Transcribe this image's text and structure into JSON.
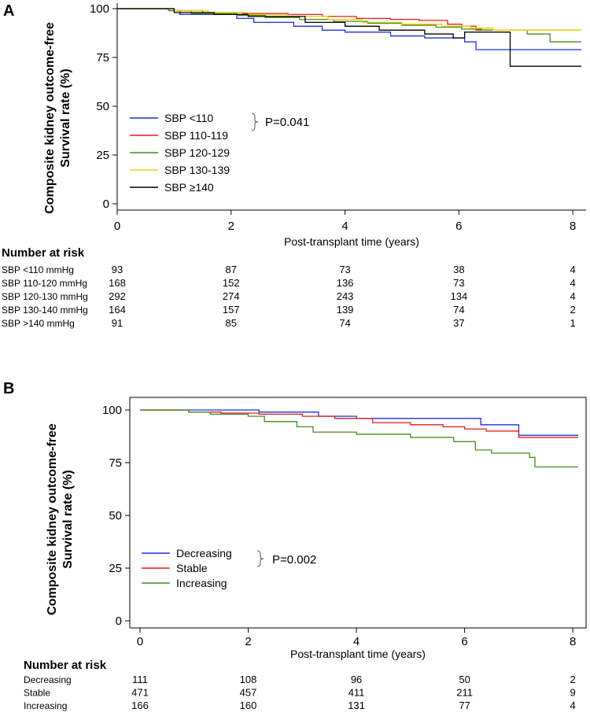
{
  "chart_data": [
    {
      "panel": "A",
      "type": "line",
      "ylabel": [
        "Composite kidney outcome-free",
        "Survival rate (%)"
      ],
      "xlabel": "Post-transplant time (years)",
      "xlim": [
        0,
        8.15
      ],
      "ylim": [
        0,
        100
      ],
      "xticks": [
        0,
        2,
        4,
        6,
        8
      ],
      "yticks": [
        0,
        25,
        50,
        75,
        100
      ],
      "xtick_labels": [
        "0",
        "2",
        "4",
        "6",
        "8"
      ],
      "ytick_labels": [
        "0",
        "25",
        "50",
        "75",
        "100"
      ],
      "legend": [
        "SBP <110",
        "SBP 110-119",
        "SBP 120-129",
        "SBP 130-139",
        "SBP ≥140"
      ],
      "p_value": "P=0.041",
      "series": [
        {
          "name": "SBP <110",
          "color": "#1f2fe0",
          "x": [
            0,
            0.9,
            1.1,
            2.1,
            2.4,
            3.1,
            3.6,
            4.0,
            4.8,
            5.4,
            6.1,
            6.3,
            8.15
          ],
          "y": [
            100,
            99,
            97,
            95,
            93,
            91,
            89,
            88,
            86,
            85,
            83,
            79,
            79
          ]
        },
        {
          "name": "SBP 110-119",
          "color": "#e01b1b",
          "x": [
            0,
            1.0,
            1.5,
            2.2,
            3.0,
            3.6,
            4.2,
            4.8,
            5.3,
            5.8,
            6.05,
            6.3,
            8.15
          ],
          "y": [
            100,
            99,
            98,
            97.5,
            97,
            96,
            95,
            94.5,
            94,
            92,
            91,
            89,
            89
          ]
        },
        {
          "name": "SBP 120-129",
          "color": "#4a8a1e",
          "x": [
            0,
            0.9,
            1.3,
            2.1,
            2.6,
            3.2,
            3.8,
            4.4,
            5.0,
            5.6,
            6.05,
            6.4,
            7.2,
            7.6,
            8.15
          ],
          "y": [
            100,
            99,
            97.5,
            96.5,
            95.5,
            94.5,
            93.5,
            92.5,
            91.5,
            90.5,
            89.5,
            89,
            87,
            83,
            83
          ]
        },
        {
          "name": "SBP 130-139",
          "color": "#f0d000",
          "x": [
            0,
            1.0,
            1.6,
            2.3,
            3.0,
            3.7,
            4.3,
            5.0,
            5.7,
            6.2,
            6.6,
            8.15
          ],
          "y": [
            100,
            99,
            98,
            97,
            96,
            94.5,
            93,
            92,
            91,
            90,
            89,
            89
          ]
        },
        {
          "name": "SBP ≥140",
          "color": "#000000",
          "x": [
            0,
            1.0,
            1.7,
            2.3,
            3.3,
            4.0,
            4.6,
            5.4,
            5.9,
            6.1,
            6.9,
            8.15
          ],
          "y": [
            100,
            98,
            97,
            96,
            93,
            91,
            89,
            87,
            85,
            88,
            70.5,
            70.5
          ]
        }
      ],
      "risk_table": {
        "title": "Number at risk",
        "rows": [
          {
            "label": "SBP <110 mmHg",
            "values": [
              "93",
              "87",
              "73",
              "38",
              "4"
            ]
          },
          {
            "label": "SBP 110-120 mmHg",
            "values": [
              "168",
              "152",
              "136",
              "73",
              "4"
            ]
          },
          {
            "label": "SBP 120-130 mmHg",
            "values": [
              "292",
              "274",
              "243",
              "134",
              "4"
            ]
          },
          {
            "label": "SBP 130-140 mmHg",
            "values": [
              "164",
              "157",
              "139",
              "74",
              "2"
            ]
          },
          {
            "label": "SBP >140 mmHg",
            "values": [
              "91",
              "85",
              "74",
              "37",
              "1"
            ]
          }
        ]
      }
    },
    {
      "panel": "B",
      "type": "line",
      "ylabel": [
        "Composite kidney outcome-free",
        "Survival rate (%)"
      ],
      "xlabel": "Post-transplant time (years)",
      "xlim": [
        0,
        8.1
      ],
      "ylim": [
        0,
        100
      ],
      "xticks": [
        0,
        2,
        4,
        6,
        8
      ],
      "yticks": [
        0,
        25,
        50,
        75,
        100
      ],
      "xtick_labels": [
        "0",
        "2",
        "4",
        "6",
        "8"
      ],
      "ytick_labels": [
        "0",
        "25",
        "50",
        "75",
        "100"
      ],
      "legend": [
        "Decreasing",
        "Stable",
        "Increasing"
      ],
      "p_value": "P=0.002",
      "series": [
        {
          "name": "Decreasing",
          "color": "#1f2fe0",
          "x": [
            0,
            2.0,
            2.2,
            3.0,
            3.3,
            4.0,
            6.0,
            6.3,
            7.0,
            8.1
          ],
          "y": [
            100,
            100,
            99,
            99,
            97,
            96,
            96,
            93,
            88,
            88
          ]
        },
        {
          "name": "Stable",
          "color": "#e01b1b",
          "x": [
            0,
            0.9,
            1.5,
            2.2,
            3.0,
            3.6,
            4.3,
            5.0,
            5.6,
            6.0,
            6.4,
            7.0,
            8.1
          ],
          "y": [
            100,
            99,
            98.5,
            98,
            97,
            96,
            94,
            93,
            92,
            91,
            90,
            87,
            87
          ]
        },
        {
          "name": "Increasing",
          "color": "#4a8a1e",
          "x": [
            0,
            0.9,
            1.3,
            2.0,
            2.3,
            2.9,
            3.2,
            4.0,
            5.0,
            5.8,
            6.2,
            6.5,
            7.2,
            7.3,
            8.1
          ],
          "y": [
            100,
            99,
            98,
            97,
            94.5,
            92,
            89.5,
            88.5,
            87,
            85,
            81,
            79.5,
            77.5,
            73,
            73
          ]
        }
      ],
      "risk_table": {
        "title": "Number at risk",
        "rows": [
          {
            "label": "Decreasing",
            "values": [
              "111",
              "108",
              "96",
              "50",
              "2"
            ]
          },
          {
            "label": "Stable",
            "values": [
              "471",
              "457",
              "411",
              "211",
              "9"
            ]
          },
          {
            "label": "Increasing",
            "values": [
              "166",
              "160",
              "131",
              "77",
              "4"
            ]
          }
        ]
      }
    }
  ]
}
